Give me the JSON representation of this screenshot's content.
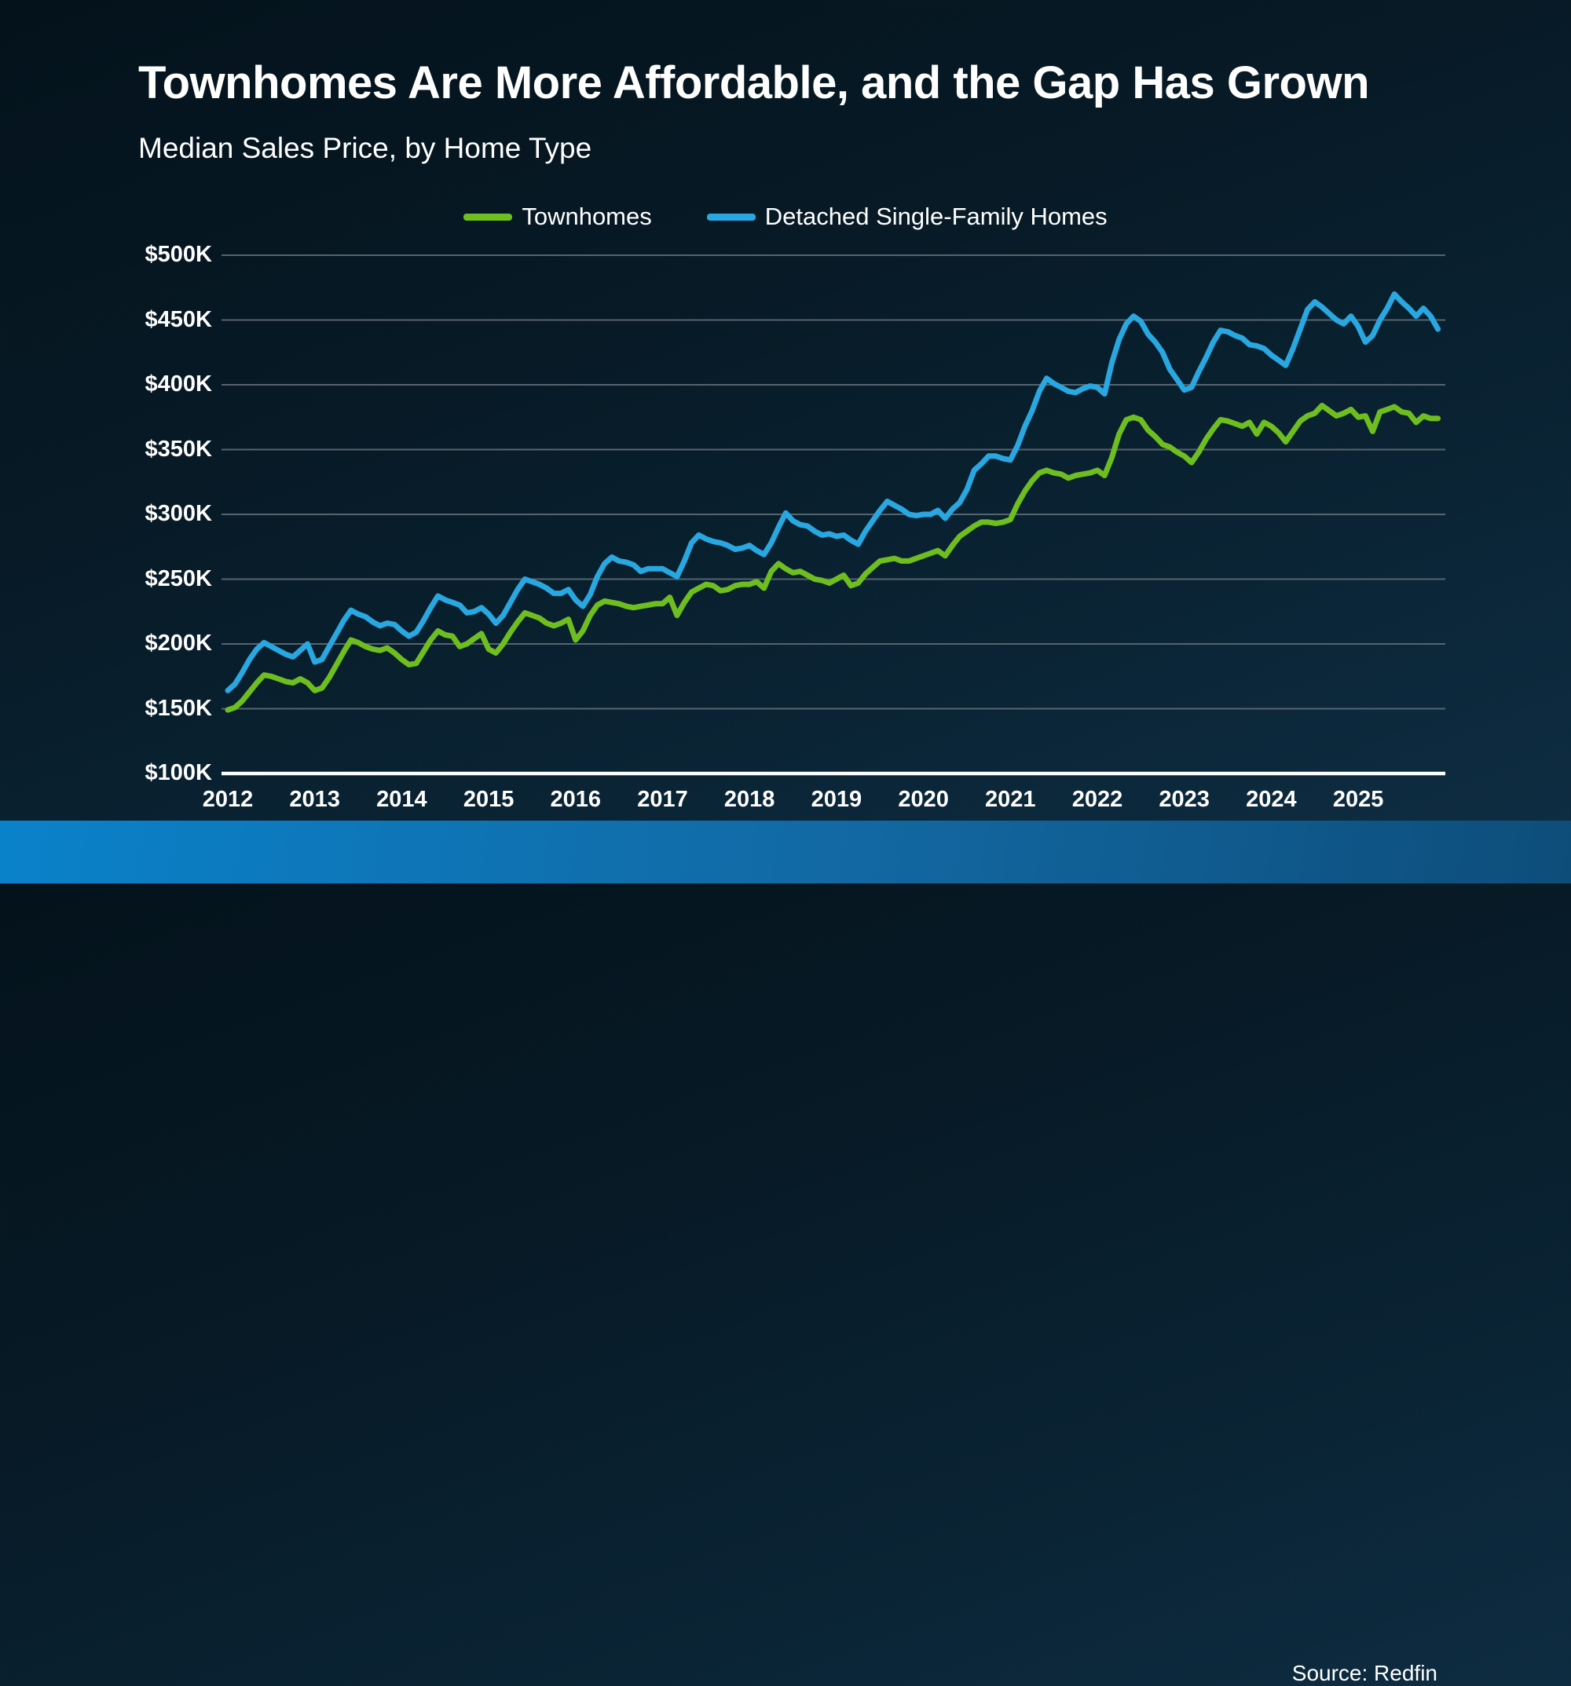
{
  "header": {
    "title": "Townhomes Are More Affordable, and the Gap Has Grown",
    "subtitle": "Median Sales Price, by Home Type"
  },
  "legend": {
    "items": [
      {
        "label": "Townhomes",
        "color": "#6fbe1f"
      },
      {
        "label": "Detached Single-Family Homes",
        "color": "#29a7e0"
      }
    ]
  },
  "footer": {
    "source": "Source: Redfin"
  },
  "colors": {
    "townhomes_green": "#6fbe1f",
    "detached_blue": "#29a7e0",
    "gridline": "#56646e",
    "axis_line": "#ffffff",
    "background_top": "#04121b",
    "background_bottom": "#0f2e44",
    "footer_left": "#0a82ca",
    "footer_right": "#0d4d7a"
  },
  "chart_data": {
    "type": "line",
    "title": "Townhomes Are More Affordable, and the Gap Has Grown",
    "subtitle": "Median Sales Price, by Home Type",
    "frequency": "monthly",
    "x_start": "2012-01",
    "x_end": "2025-12",
    "units": "USD thousands",
    "ylim": [
      100,
      500
    ],
    "grid": true,
    "legend_position": "top-center",
    "x_tick_labels": [
      "2012",
      "2013",
      "2014",
      "2015",
      "2016",
      "2017",
      "2018",
      "2019",
      "2020",
      "2021",
      "2022",
      "2023",
      "2024",
      "2025"
    ],
    "y_ticks": [
      {
        "label": "$100K",
        "value": 100
      },
      {
        "label": "$150K",
        "value": 150
      },
      {
        "label": "$200K",
        "value": 200
      },
      {
        "label": "$250K",
        "value": 250
      },
      {
        "label": "$300K",
        "value": 300
      },
      {
        "label": "$350K",
        "value": 350
      },
      {
        "label": "$400K",
        "value": 400
      },
      {
        "label": "$450K",
        "value": 450
      },
      {
        "label": "$500K",
        "value": 500
      }
    ],
    "series": [
      {
        "name": "Townhomes",
        "color": "#6fbe1f",
        "values": [
          149,
          151,
          156,
          163,
          170,
          176,
          175,
          173,
          171,
          170,
          173,
          170,
          164,
          166,
          174,
          184,
          194,
          203,
          201,
          198,
          196,
          195,
          197,
          193,
          188,
          184,
          185,
          194,
          203,
          210,
          207,
          206,
          198,
          200,
          204,
          208,
          196,
          193,
          200,
          209,
          217,
          224,
          222,
          220,
          216,
          214,
          216,
          219,
          203,
          210,
          222,
          230,
          233,
          232,
          231,
          229,
          228,
          229,
          230,
          231,
          231,
          236,
          222,
          232,
          240,
          243,
          246,
          245,
          241,
          242,
          245,
          246,
          246,
          248,
          243,
          256,
          262,
          258,
          255,
          256,
          253,
          250,
          249,
          247,
          250,
          253,
          245,
          247,
          254,
          259,
          264,
          265,
          266,
          264,
          264,
          266,
          268,
          270,
          272,
          268,
          276,
          283,
          287,
          291,
          294,
          294,
          293,
          294,
          296,
          308,
          318,
          326,
          332,
          334,
          332,
          331,
          328,
          330,
          331,
          332,
          334,
          330,
          344,
          362,
          373,
          375,
          373,
          365,
          360,
          354,
          352,
          348,
          345,
          340,
          348,
          358,
          366,
          373,
          372,
          370,
          368,
          371,
          362,
          371,
          368,
          363,
          356,
          364,
          372,
          376,
          378,
          384,
          380,
          376,
          378,
          381,
          375,
          376,
          364,
          379,
          381,
          383,
          379,
          378,
          371,
          376,
          374,
          374
        ]
      },
      {
        "name": "Detached Single-Family Homes",
        "color": "#29a7e0",
        "values": [
          164,
          169,
          178,
          188,
          196,
          201,
          198,
          195,
          192,
          190,
          195,
          200,
          186,
          188,
          198,
          208,
          218,
          226,
          223,
          221,
          217,
          214,
          216,
          215,
          210,
          206,
          209,
          218,
          228,
          237,
          234,
          232,
          230,
          224,
          225,
          228,
          223,
          216,
          222,
          232,
          242,
          250,
          248,
          246,
          243,
          239,
          239,
          242,
          234,
          229,
          238,
          252,
          262,
          267,
          264,
          263,
          261,
          256,
          258,
          258,
          258,
          255,
          252,
          264,
          278,
          284,
          281,
          279,
          278,
          276,
          273,
          274,
          276,
          272,
          269,
          278,
          290,
          301,
          295,
          292,
          291,
          287,
          284,
          285,
          283,
          284,
          280,
          277,
          287,
          295,
          303,
          310,
          307,
          304,
          300,
          299,
          300,
          300,
          303,
          297,
          304,
          309,
          319,
          334,
          339,
          345,
          345,
          343,
          342,
          353,
          368,
          380,
          395,
          405,
          401,
          398,
          395,
          394,
          397,
          399,
          398,
          393,
          417,
          435,
          447,
          453,
          449,
          439,
          433,
          425,
          412,
          404,
          396,
          398,
          410,
          421,
          433,
          442,
          441,
          438,
          436,
          431,
          430,
          428,
          423,
          419,
          415,
          428,
          443,
          458,
          464,
          460,
          455,
          450,
          447,
          453,
          445,
          433,
          438,
          450,
          459,
          470,
          464,
          459,
          453,
          459,
          453,
          443
        ]
      }
    ]
  }
}
